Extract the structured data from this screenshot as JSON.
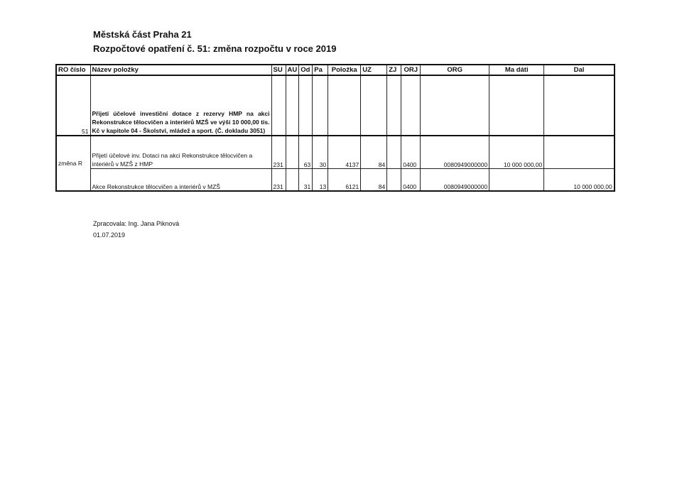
{
  "title_line1": "Městská část Praha 21",
  "title_line2": "Rozpočtové opatření č. 51: změna rozpočtu v roce 2019",
  "table": {
    "headers": [
      "RO číslo",
      "Název položky",
      "SU",
      "AU",
      "Od",
      "Pa",
      "Položka",
      "UZ",
      "ZJ",
      "ORJ",
      "ORG",
      "Ma dáti",
      "Dal"
    ],
    "row1": {
      "ro": "51",
      "nazev": "Přijetí účelové investiční dotace z rezervy HMP na akci Rekonstrukce tělocvičen a interiérů MZŠ ve výši 10 000,00 tis. Kč v kapitole 04 - Školství, mládež a sport. (Č. dokladu 3051)"
    },
    "group_ro": "změna R",
    "row2": {
      "nazev": "Přijetí účelové inv. Dotaci na akci Rekonstrukce tělocvičen a interiérů v MZŠ z HMP",
      "su": "231",
      "au": "",
      "od": "63",
      "pa": "30",
      "polozka": "4137",
      "uz": "84",
      "zj": "",
      "orj": "0400",
      "org": "0080949000000",
      "ma_dati": "10 000 000,00",
      "dal": ""
    },
    "row3": {
      "nazev": "Akce Rekonstrukce tělocvičen a interiérů v MZŠ",
      "su": "231",
      "au": "",
      "od": "31",
      "pa": "13",
      "polozka": "6121",
      "uz": "84",
      "zj": "",
      "orj": "0400",
      "org": "0080949000000",
      "ma_dati": "",
      "dal": "10 000 000,00"
    }
  },
  "footer": {
    "prepared_by": "Zpracovala: Ing. Jana Piknová",
    "date": "01.07.2019"
  }
}
